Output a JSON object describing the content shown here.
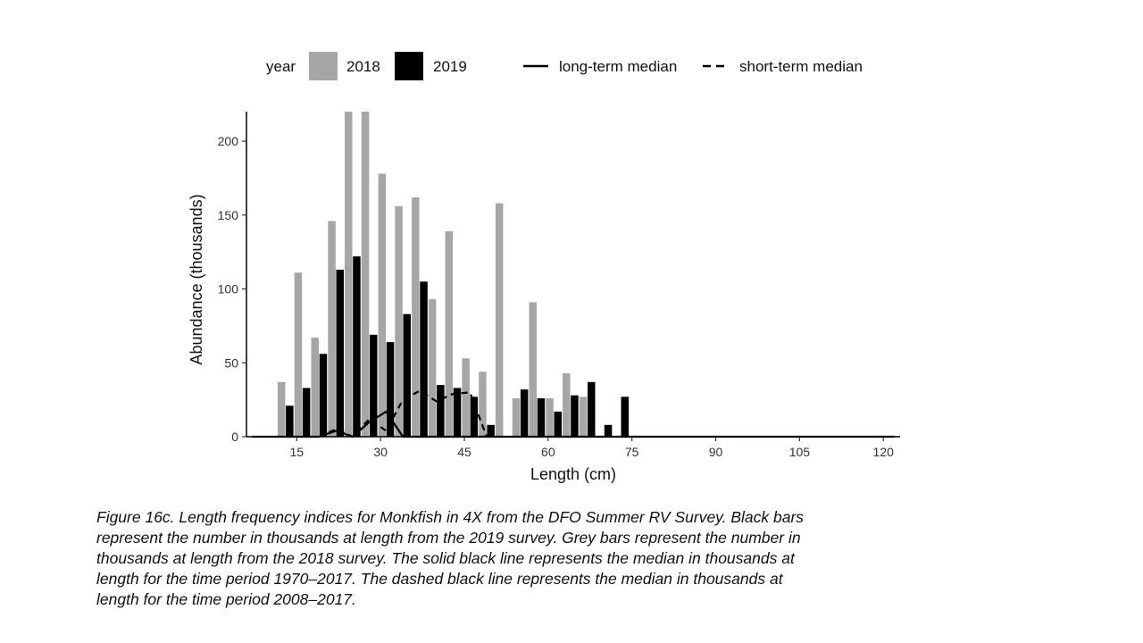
{
  "chart_data": {
    "type": "bar",
    "legend": {
      "title": "year",
      "items": [
        {
          "label": "2018",
          "color": "#a6a6a6",
          "kind": "bar"
        },
        {
          "label": "2019",
          "color": "#000000",
          "kind": "bar"
        },
        {
          "label": "long-term median",
          "kind": "solid-line"
        },
        {
          "label": "short-term median",
          "kind": "dashed-line"
        }
      ],
      "placement": "top"
    },
    "xlabel": "Length (cm)",
    "ylabel": "Abundance (thousands)",
    "xlim": [
      6,
      123
    ],
    "ylim": [
      0,
      220
    ],
    "xticks": [
      15,
      30,
      45,
      60,
      75,
      90,
      105,
      120
    ],
    "yticks": [
      0,
      50,
      100,
      150,
      200
    ],
    "grid": false,
    "series": [
      {
        "name": "2018",
        "color": "#a6a6a6",
        "x": [
          13,
          16,
          19,
          22,
          25,
          28,
          31,
          34,
          37,
          40,
          43,
          46,
          49,
          52,
          55,
          58,
          61,
          64,
          67
        ],
        "values": [
          37,
          111,
          67,
          146,
          220,
          220,
          178,
          156,
          162,
          93,
          139,
          53,
          44,
          158,
          26,
          91,
          26,
          43,
          27
        ]
      },
      {
        "name": "2019",
        "color": "#000000",
        "x": [
          13,
          16,
          19,
          22,
          25,
          28,
          31,
          34,
          37,
          40,
          43,
          46,
          49,
          55,
          58,
          61,
          64,
          67,
          70,
          73
        ],
        "values": [
          21,
          33,
          56,
          113,
          122,
          69,
          64,
          83,
          105,
          35,
          33,
          27,
          8,
          32,
          26,
          17,
          28,
          37,
          8,
          27
        ]
      },
      {
        "name": "long-term median",
        "style": "solid",
        "x": [
          7,
          19,
          22,
          25,
          28,
          31,
          34,
          37,
          40,
          46,
          49,
          52,
          122
        ],
        "values": [
          0,
          0,
          4,
          0,
          10,
          17,
          0,
          0,
          0,
          0,
          0,
          0,
          0
        ]
      },
      {
        "name": "short-term median",
        "style": "dashed",
        "x": [
          19,
          22,
          25,
          28,
          31,
          34,
          37,
          40,
          43,
          46,
          49
        ],
        "values": [
          0,
          5,
          0,
          12,
          4,
          25,
          31,
          24,
          29,
          30,
          0
        ]
      }
    ]
  },
  "caption": {
    "lines": [
      "Figure 16c. Length frequency indices for Monkfish in 4X from the DFO Summer RV Survey. Black bars",
      "represent the number in thousands at length from the 2019 survey. Grey bars represent the number in",
      "thousands at length from the 2018 survey. The solid black line represents the median in thousands at",
      "length for the time period 1970–2017. The dashed black line represents the median in thousands at",
      "length for the time period 2008–2017."
    ]
  }
}
